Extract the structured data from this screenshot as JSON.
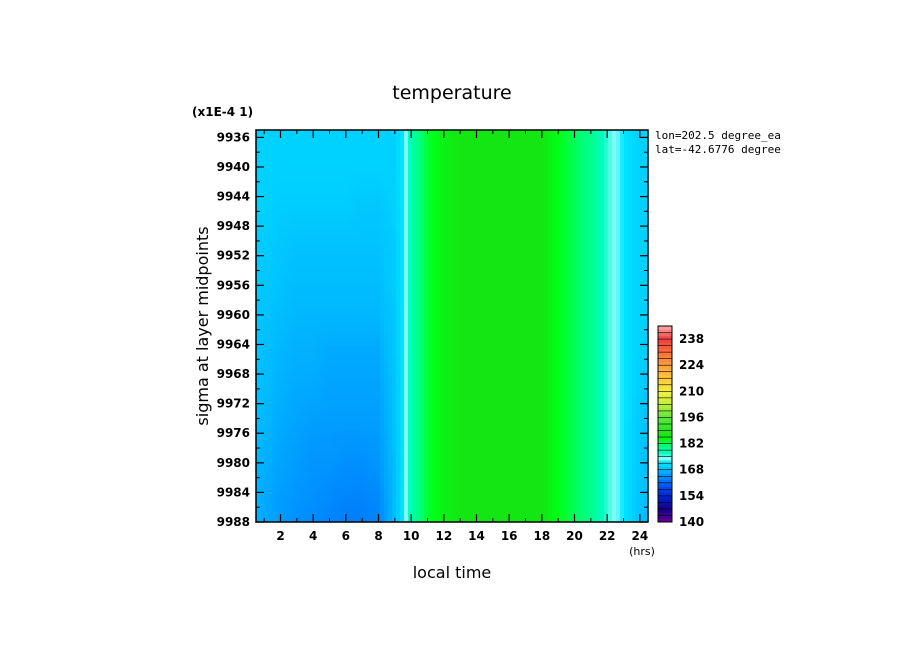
{
  "chart_data": {
    "type": "heatmap",
    "title": "temperature",
    "scale_note": "(x1E-4 1)",
    "xlabel": "local time",
    "xunit": "(hrs)",
    "ylabel": "sigma at layer midpoints",
    "annotations": [
      "lon=202.5 degree_ea",
      "lat=-42.6776 degree"
    ],
    "x_range": [
      0.5,
      24.5
    ],
    "y_range": [
      9935.0,
      9988.0
    ],
    "y_reversed": true,
    "x_ticks": [
      "2",
      "4",
      "6",
      "8",
      "10",
      "12",
      "14",
      "16",
      "18",
      "20",
      "22",
      "24"
    ],
    "y_ticks": [
      "9936",
      "9940",
      "9944",
      "9948",
      "9952",
      "9956",
      "9960",
      "9964",
      "9968",
      "9972",
      "9976",
      "9980",
      "9984",
      "9988"
    ],
    "colorbar": {
      "ticks": [
        "140",
        "154",
        "168",
        "182",
        "196",
        "210",
        "224",
        "238"
      ],
      "range": [
        140,
        245
      ]
    },
    "x": [
      0.5,
      1,
      2,
      3,
      4,
      5,
      6,
      7,
      8,
      9,
      9.5,
      10,
      11,
      12,
      13,
      14,
      15,
      16,
      17,
      18,
      19,
      20,
      21,
      22,
      23,
      24,
      24.5
    ],
    "y": [
      9935,
      9940,
      9945,
      9950,
      9955,
      9960,
      9965,
      9970,
      9975,
      9980,
      9985,
      9988
    ],
    "values_note": "temperature in colorbar units, rows = y, columns = x (estimated)",
    "values": [
      [
        170,
        170,
        170,
        170,
        170,
        170,
        170,
        170,
        170,
        170,
        172,
        178,
        183,
        185,
        186,
        186,
        186,
        186,
        186,
        186,
        184,
        182,
        180,
        176,
        172,
        170,
        170
      ],
      [
        170,
        170,
        170,
        170,
        170,
        170,
        170,
        170,
        170,
        170,
        172,
        178,
        183,
        185,
        186,
        186,
        186,
        186,
        186,
        186,
        184,
        182,
        180,
        176,
        172,
        170,
        170
      ],
      [
        170,
        170,
        169.5,
        169.5,
        169.5,
        169.5,
        169.5,
        169,
        169,
        170,
        172,
        178,
        183,
        185,
        186,
        186,
        186,
        186,
        186,
        186,
        184,
        182,
        180,
        176,
        172,
        170,
        170
      ],
      [
        169.5,
        169.5,
        169,
        168.5,
        168.5,
        168.5,
        168.5,
        168.5,
        168.5,
        169.5,
        172,
        178,
        183,
        185,
        186,
        186,
        186,
        186,
        186,
        186,
        184,
        182,
        180,
        176,
        172,
        170,
        170
      ],
      [
        169.5,
        169,
        168.5,
        168,
        168,
        168,
        168,
        168,
        168,
        169.5,
        172,
        178,
        183,
        185,
        186,
        186,
        186,
        186,
        186,
        186,
        184,
        182,
        180,
        176,
        172,
        170,
        170
      ],
      [
        169,
        168.5,
        168,
        167.5,
        167.5,
        167.5,
        167.5,
        167.5,
        167.5,
        169,
        172,
        178,
        183,
        185,
        186,
        186,
        186,
        186,
        186,
        186,
        184,
        182,
        180,
        176,
        172,
        170,
        170
      ],
      [
        169,
        168,
        167.5,
        167,
        167,
        166.5,
        166.5,
        166.5,
        166.5,
        169,
        172,
        178,
        183,
        185,
        186,
        186,
        186,
        186,
        186,
        186,
        184,
        182,
        180,
        176,
        172,
        170,
        169.5
      ],
      [
        168.5,
        168,
        167,
        166.5,
        166.5,
        166,
        166,
        166,
        166,
        168.5,
        172,
        178,
        183,
        185,
        186,
        186,
        186,
        186,
        186,
        186,
        184,
        182,
        180,
        176,
        172,
        169.5,
        169
      ],
      [
        168,
        167.5,
        166.5,
        166,
        165.5,
        165.5,
        165.5,
        165.5,
        165.5,
        168.5,
        172,
        178,
        183,
        185,
        186,
        186,
        186,
        186,
        186,
        186,
        184,
        182,
        180,
        176,
        172,
        169,
        168.5
      ],
      [
        167.5,
        167,
        166,
        165.5,
        165,
        165,
        164.5,
        164.5,
        165,
        168,
        172,
        178,
        183,
        185,
        186,
        186,
        186,
        186,
        186,
        186,
        184,
        182,
        180,
        176,
        172,
        169,
        168
      ],
      [
        167.5,
        166.5,
        165.5,
        165,
        164.5,
        164,
        163.5,
        163.5,
        164,
        168,
        172,
        178,
        183,
        185,
        186,
        186,
        186,
        186,
        186,
        186,
        184,
        182,
        180,
        176,
        172,
        168.5,
        168
      ],
      [
        167,
        166.5,
        165.5,
        164.5,
        164,
        163.5,
        163,
        163,
        163.5,
        168,
        172,
        178,
        183,
        185,
        186,
        186,
        186,
        186,
        186,
        186,
        184,
        182,
        180,
        176,
        172,
        168.5,
        167.5
      ]
    ]
  }
}
